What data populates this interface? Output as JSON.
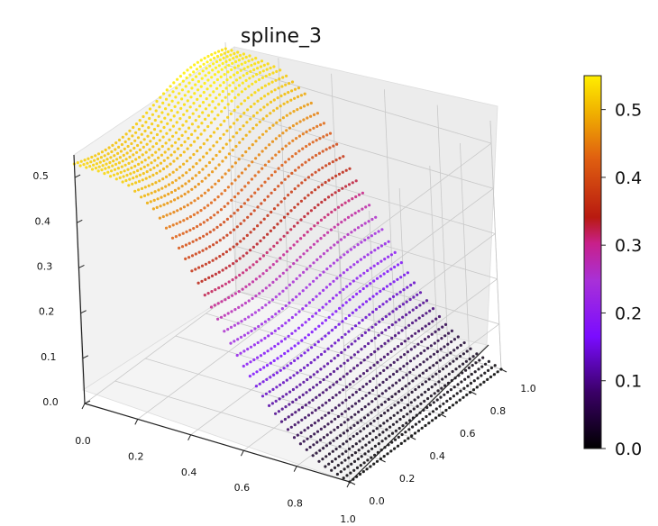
{
  "chart_data": {
    "type": "scatter",
    "projection": "3d",
    "title": "spline_3",
    "xlabel": "",
    "ylabel": "",
    "zlabel": "",
    "xlim": [
      0.0,
      1.0
    ],
    "ylim": [
      0.0,
      1.0
    ],
    "zlim": [
      0.0,
      0.55
    ],
    "x_ticks": [
      "0.0",
      "0.2",
      "0.4",
      "0.6",
      "0.8",
      "1.0"
    ],
    "y_ticks": [
      "0.0",
      "0.2",
      "0.4",
      "0.6",
      "0.8",
      "1.0"
    ],
    "z_ticks": [
      "0.0",
      "0.1",
      "0.2",
      "0.3",
      "0.4",
      "0.5"
    ],
    "colormap": "gnuplot",
    "colorbar": {
      "range": [
        0.0,
        0.55
      ],
      "ticks": [
        "0.0",
        "0.1",
        "0.2",
        "0.3",
        "0.4",
        "0.5"
      ]
    },
    "surface_profile": {
      "description_values": "z as a function of x (roughly constant along y)",
      "x": [
        0.0,
        0.1,
        0.2,
        0.3,
        0.4,
        0.5,
        0.6,
        0.7,
        0.8,
        0.9,
        1.0
      ],
      "z": [
        0.53,
        0.53,
        0.52,
        0.48,
        0.4,
        0.3,
        0.2,
        0.12,
        0.06,
        0.02,
        0.0
      ]
    },
    "grid": true,
    "colorbar_position": "right"
  }
}
